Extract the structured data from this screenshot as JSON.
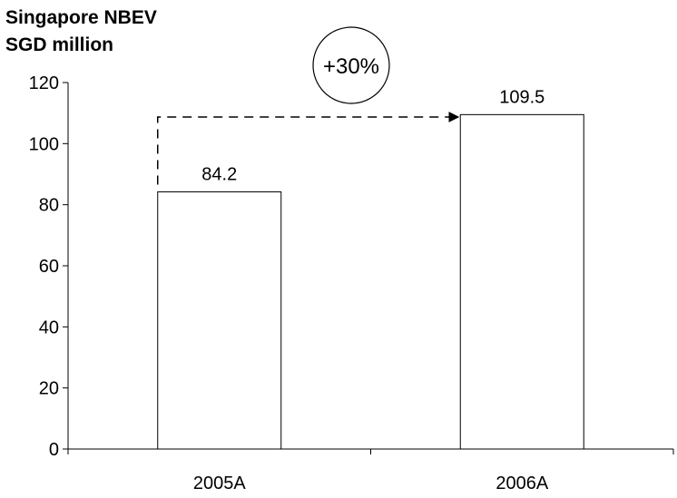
{
  "chart_data": {
    "type": "bar",
    "title": "Singapore NBEV",
    "subtitle": "SGD million",
    "categories": [
      "2005A",
      "2006A"
    ],
    "values": [
      84.2,
      109.5
    ],
    "data_labels": [
      "84.2",
      "109.5"
    ],
    "ylim": [
      0,
      120
    ],
    "yticks": [
      0,
      20,
      40,
      60,
      80,
      100,
      120
    ],
    "grid": false,
    "bar_color": "#ffffff",
    "bar_edge_color": "#000000",
    "annotation": {
      "text": "+30%",
      "from": "2005A",
      "to": "2006A",
      "style": "dashed-arrow"
    }
  }
}
